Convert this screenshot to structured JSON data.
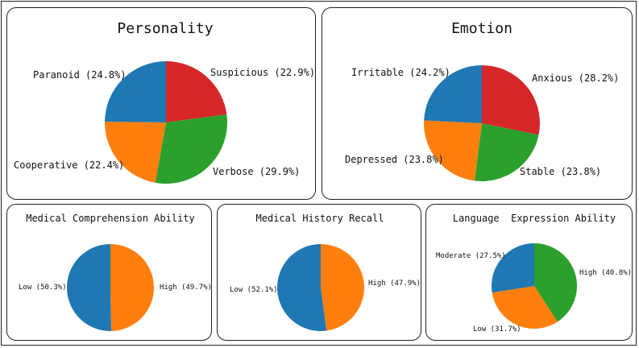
{
  "chart_data": [
    {
      "type": "pie",
      "title": "Personality",
      "slices": [
        {
          "label": "Suspicious",
          "value": 22.9,
          "color": "#d62728",
          "text": "Suspicious (22.9%)"
        },
        {
          "label": "Verbose",
          "value": 29.9,
          "color": "#2ca02c",
          "text": "Verbose (29.9%)"
        },
        {
          "label": "Cooperative",
          "value": 22.4,
          "color": "#ff7f0e",
          "text": "Cooperative (22.4%)"
        },
        {
          "label": "Paranoid",
          "value": 24.8,
          "color": "#1f77b4",
          "text": "Paranoid (24.8%)"
        }
      ]
    },
    {
      "type": "pie",
      "title": "Emotion",
      "slices": [
        {
          "label": "Anxious",
          "value": 28.2,
          "color": "#d62728",
          "text": "Anxious (28.2%)"
        },
        {
          "label": "Stable",
          "value": 23.8,
          "color": "#2ca02c",
          "text": "Stable (23.8%)"
        },
        {
          "label": "Depressed",
          "value": 23.8,
          "color": "#ff7f0e",
          "text": "Depressed (23.8%)"
        },
        {
          "label": "Irritable",
          "value": 24.2,
          "color": "#1f77b4",
          "text": "Irritable (24.2%)"
        }
      ]
    },
    {
      "type": "pie",
      "title": "Medical Comprehension Ability",
      "slices": [
        {
          "label": "High",
          "value": 49.7,
          "color": "#ff7f0e",
          "text": "High (49.7%)"
        },
        {
          "label": "Low",
          "value": 50.3,
          "color": "#1f77b4",
          "text": "Low (50.3%)"
        }
      ]
    },
    {
      "type": "pie",
      "title": "Medical History Recall",
      "slices": [
        {
          "label": "High",
          "value": 47.9,
          "color": "#ff7f0e",
          "text": "High (47.9%)"
        },
        {
          "label": "Low",
          "value": 52.1,
          "color": "#1f77b4",
          "text": "Low (52.1%)"
        }
      ]
    },
    {
      "type": "pie",
      "title": "Language  Expression Ability",
      "slices": [
        {
          "label": "High",
          "value": 40.8,
          "color": "#2ca02c",
          "text": "High (40.8%)"
        },
        {
          "label": "Low",
          "value": 31.7,
          "color": "#ff7f0e",
          "text": "Low (31.7%)"
        },
        {
          "label": "Moderate",
          "value": 27.5,
          "color": "#1f77b4",
          "text": "Moderate (27.5%)"
        }
      ]
    }
  ]
}
